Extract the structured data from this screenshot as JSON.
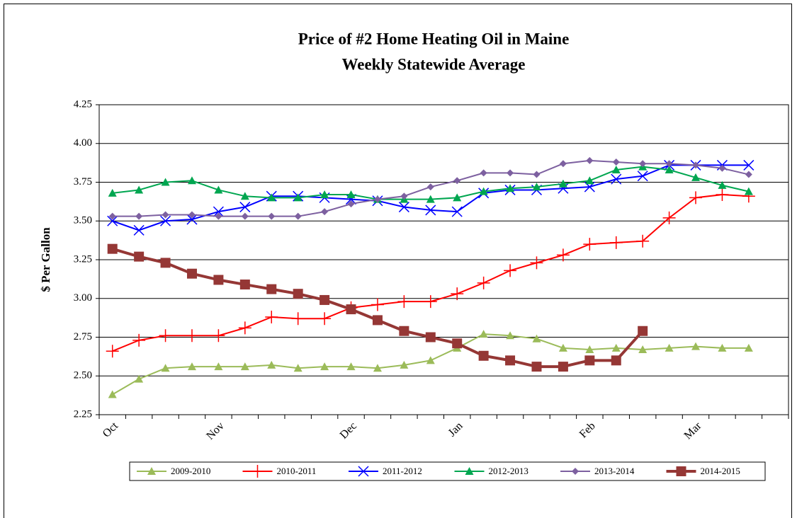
{
  "chart_data": {
    "type": "line",
    "title": "Price of #2 Home Heating Oil in Maine",
    "subtitle": "Weekly Statewide Average",
    "y_label": "$ Per Gallon",
    "categories": [
      "Oct",
      null,
      null,
      null,
      "Nov",
      null,
      null,
      null,
      null,
      "Dec",
      null,
      null,
      null,
      "Jan",
      null,
      null,
      null,
      null,
      "Feb",
      null,
      null,
      null,
      "Mar",
      null,
      null,
      null
    ],
    "ylim": [
      2.25,
      4.25
    ],
    "yticks": [
      2.25,
      {
        "value": 2.5,
        "label": "2.50"
      },
      2.75,
      {
        "value": 3,
        "label": "3.00"
      },
      3.25,
      {
        "value": 3.5,
        "label": "3.50"
      },
      3.75,
      {
        "value": 4,
        "label": "4.00"
      },
      4.25
    ],
    "grid": true,
    "legend": "bottom",
    "series": [
      {
        "name": "2009-2010",
        "color": "#9bbb59",
        "marker": "triangle",
        "width": 2,
        "values": [
          2.38,
          2.48,
          2.55,
          2.56,
          2.56,
          2.56,
          2.57,
          2.55,
          2.56,
          2.56,
          2.55,
          2.57,
          2.6,
          2.68,
          2.77,
          2.76,
          2.74,
          2.68,
          2.67,
          2.68,
          2.67,
          2.68,
          2.69,
          2.68,
          2.68,
          null
        ]
      },
      {
        "name": "2010-2011",
        "color": "#ff0000",
        "marker": "plus",
        "width": 2,
        "values": [
          2.66,
          2.73,
          2.76,
          2.76,
          2.76,
          2.81,
          2.88,
          2.87,
          2.87,
          2.94,
          2.96,
          2.98,
          2.98,
          3.03,
          3.1,
          3.18,
          3.23,
          3.28,
          3.35,
          3.36,
          3.37,
          3.52,
          3.65,
          3.67,
          3.66,
          null
        ]
      },
      {
        "name": "2011-2012",
        "color": "#0000ff",
        "marker": "x",
        "width": 2,
        "values": [
          3.5,
          3.44,
          3.5,
          3.51,
          3.56,
          3.59,
          3.66,
          3.66,
          3.65,
          3.64,
          3.63,
          3.59,
          3.57,
          3.56,
          3.68,
          3.7,
          3.7,
          3.71,
          3.72,
          3.77,
          3.79,
          3.86,
          3.86,
          3.86,
          3.86,
          null
        ]
      },
      {
        "name": "2012-2013",
        "color": "#00a650",
        "marker": "triangle",
        "width": 2,
        "values": [
          3.68,
          3.7,
          3.75,
          3.76,
          3.7,
          3.66,
          3.65,
          3.65,
          3.67,
          3.67,
          3.64,
          3.64,
          3.64,
          3.65,
          3.69,
          3.71,
          3.72,
          3.74,
          3.76,
          3.83,
          3.85,
          3.83,
          3.78,
          3.73,
          3.69,
          null
        ]
      },
      {
        "name": "2013-2014",
        "color": "#7d60a0",
        "marker": "diamond",
        "width": 2,
        "values": [
          3.53,
          3.53,
          3.54,
          3.54,
          3.53,
          3.53,
          3.53,
          3.53,
          3.56,
          3.61,
          3.64,
          3.66,
          3.72,
          3.76,
          3.81,
          3.81,
          3.8,
          3.87,
          3.89,
          3.88,
          3.87,
          3.87,
          3.86,
          3.84,
          3.8,
          null
        ]
      },
      {
        "name": "2014-2015",
        "color": "#953735",
        "marker": "square",
        "width": 4,
        "values": [
          3.32,
          3.27,
          3.23,
          3.16,
          3.12,
          3.09,
          3.06,
          3.03,
          2.99,
          2.93,
          2.86,
          2.79,
          2.75,
          2.71,
          2.63,
          2.6,
          2.56,
          2.56,
          2.6,
          2.6,
          2.79,
          null,
          null,
          null,
          null,
          null
        ]
      }
    ]
  }
}
